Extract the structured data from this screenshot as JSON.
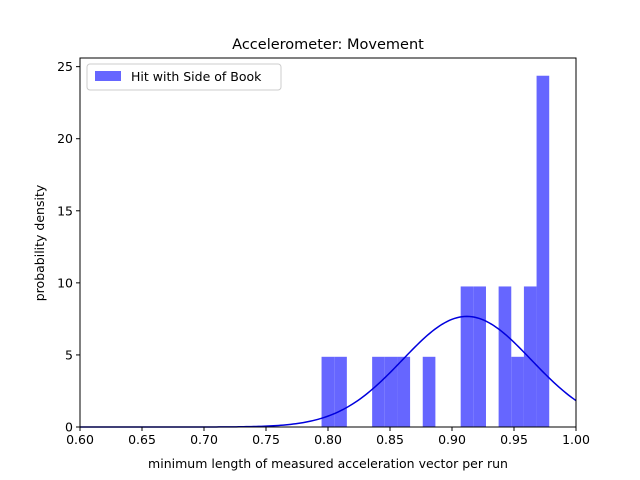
{
  "chart_data": {
    "type": "bar",
    "title": "Accelerometer: Movement",
    "xlabel": "minimum length of measured acceleration vector per run",
    "ylabel": "probability density",
    "xlim": [
      0.6,
      1.0
    ],
    "ylim": [
      0,
      25.6
    ],
    "xticks": [
      0.6,
      0.65,
      0.7,
      0.75,
      0.8,
      0.85,
      0.9,
      0.95,
      1.0
    ],
    "xtick_labels": [
      "0.60",
      "0.65",
      "0.70",
      "0.75",
      "0.80",
      "0.85",
      "0.90",
      "0.95",
      "1.00"
    ],
    "yticks": [
      0,
      5,
      10,
      15,
      20,
      25
    ],
    "ytick_labels": [
      "0",
      "5",
      "10",
      "15",
      "20",
      "25"
    ],
    "grid": false,
    "legend": {
      "position": "top-left",
      "entries": [
        {
          "label": "Hit with Side of Book",
          "color": "#6666ff"
        }
      ]
    },
    "histogram": {
      "name": "Hit with Side of Book",
      "color": "#6666ff",
      "bin_start": 0.7948,
      "bin_width": 0.0102,
      "values": [
        4.87,
        4.87,
        0,
        0,
        4.87,
        4.87,
        4.87,
        0,
        4.87,
        0,
        0,
        9.75,
        9.75,
        0,
        9.75,
        4.87,
        9.75,
        24.37
      ]
    },
    "curve": {
      "name": "normal fit",
      "color": "#0000dd",
      "mean": 0.912,
      "std": 0.052,
      "x_range": [
        0.6,
        1.0
      ]
    }
  }
}
